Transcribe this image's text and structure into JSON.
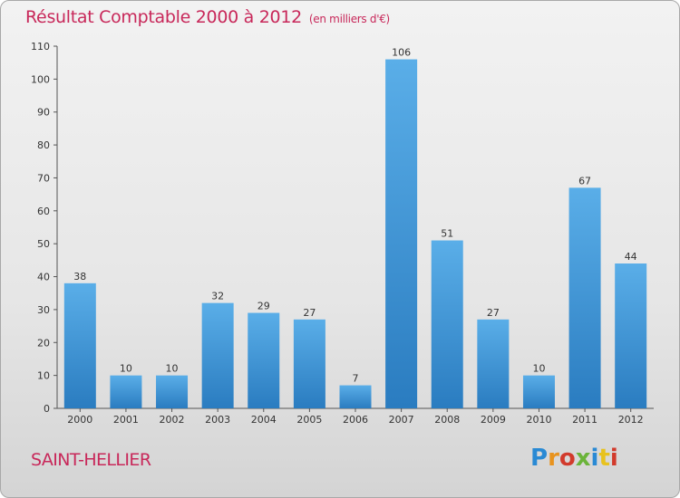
{
  "header": {
    "title": "Résultat Comptable 2000 à 2012",
    "subtitle": "(en milliers d'€)"
  },
  "footer": {
    "town": "SAINT-HELLIER",
    "logo_text": "Proxiti"
  },
  "colors": {
    "title": "#c8285a",
    "bar_top": "#5aaee8",
    "bar_bottom": "#2a7cc0"
  },
  "chart_data": {
    "type": "bar",
    "title": "Résultat Comptable 2000 à 2012",
    "xlabel": "",
    "ylabel": "",
    "categories": [
      "2000",
      "2001",
      "2002",
      "2003",
      "2004",
      "2005",
      "2006",
      "2007",
      "2008",
      "2009",
      "2010",
      "2011",
      "2012"
    ],
    "values": [
      38,
      10,
      10,
      32,
      29,
      27,
      7,
      106,
      51,
      27,
      10,
      67,
      44
    ],
    "ylim": [
      0,
      110
    ],
    "yticks": [
      0,
      10,
      20,
      30,
      40,
      50,
      60,
      70,
      80,
      90,
      100,
      110
    ],
    "grid": false,
    "data_labels": true
  }
}
